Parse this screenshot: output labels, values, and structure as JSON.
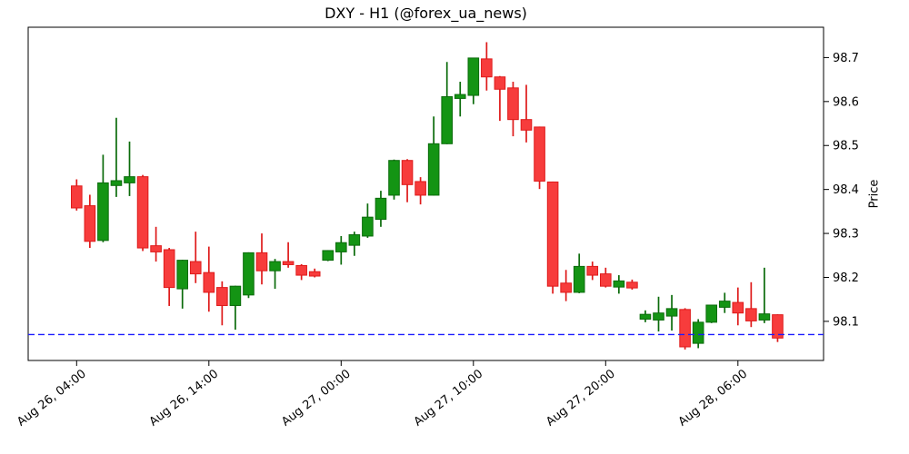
{
  "chart_data": {
    "type": "candlestick",
    "title": "DXY - H1 (@forex_ua_news)",
    "symbol": "DXY",
    "timeframe": "H1",
    "source_handle": "@forex_ua_news",
    "ylabel": "Price",
    "ylim": [
      98.011,
      98.769
    ],
    "y_ticks": [
      98.1,
      98.2,
      98.3,
      98.4,
      98.5,
      98.6,
      98.7
    ],
    "x_tick_indices": [
      0,
      10,
      20,
      30,
      40,
      50
    ],
    "x_tick_labels": [
      "Aug 26, 04:00",
      "Aug 26, 14:00",
      "Aug 27, 00:00",
      "Aug 27, 10:00",
      "Aug 27, 20:00",
      "Aug 28, 06:00"
    ],
    "grid": false,
    "legend": "none",
    "hline": {
      "value": 98.07,
      "color": "#1c1cff",
      "style": "dashed"
    },
    "up_color": "#149414",
    "up_edge_color": "#0b6b0b",
    "down_color": "#f73c3c",
    "down_edge_color": "#de1a1a",
    "candles": [
      {
        "t": "Aug 26, 04:00",
        "o": 98.408,
        "h": 98.423,
        "l": 98.352,
        "c": 98.358
      },
      {
        "t": "Aug 26, 05:00",
        "o": 98.363,
        "h": 98.388,
        "l": 98.267,
        "c": 98.282
      },
      {
        "t": "Aug 26, 06:00",
        "o": 98.284,
        "h": 98.479,
        "l": 98.28,
        "c": 98.415
      },
      {
        "t": "Aug 26, 07:00",
        "o": 98.409,
        "h": 98.563,
        "l": 98.383,
        "c": 98.42
      },
      {
        "t": "Aug 26, 08:00",
        "o": 98.415,
        "h": 98.509,
        "l": 98.385,
        "c": 98.429
      },
      {
        "t": "Aug 26, 09:00",
        "o": 98.429,
        "h": 98.433,
        "l": 98.26,
        "c": 98.267
      },
      {
        "t": "Aug 26, 10:00",
        "o": 98.272,
        "h": 98.315,
        "l": 98.236,
        "c": 98.258
      },
      {
        "t": "Aug 26, 11:00",
        "o": 98.263,
        "h": 98.267,
        "l": 98.135,
        "c": 98.177
      },
      {
        "t": "Aug 26, 12:00",
        "o": 98.174,
        "h": 98.24,
        "l": 98.129,
        "c": 98.239
      },
      {
        "t": "Aug 26, 13:00",
        "o": 98.236,
        "h": 98.304,
        "l": 98.187,
        "c": 98.208
      },
      {
        "t": "Aug 26, 14:00",
        "o": 98.211,
        "h": 98.27,
        "l": 98.122,
        "c": 98.166
      },
      {
        "t": "Aug 26, 15:00",
        "o": 98.177,
        "h": 98.191,
        "l": 98.091,
        "c": 98.136
      },
      {
        "t": "Aug 26, 16:00",
        "o": 98.136,
        "h": 98.181,
        "l": 98.081,
        "c": 98.18
      },
      {
        "t": "Aug 26, 17:00",
        "o": 98.16,
        "h": 98.257,
        "l": 98.153,
        "c": 98.256
      },
      {
        "t": "Aug 26, 18:00",
        "o": 98.256,
        "h": 98.3,
        "l": 98.184,
        "c": 98.215
      },
      {
        "t": "Aug 26, 19:00",
        "o": 98.215,
        "h": 98.242,
        "l": 98.174,
        "c": 98.236
      },
      {
        "t": "Aug 26, 20:00",
        "o": 98.236,
        "h": 98.28,
        "l": 98.222,
        "c": 98.229
      },
      {
        "t": "Aug 26, 21:00",
        "o": 98.227,
        "h": 98.23,
        "l": 98.194,
        "c": 98.205
      },
      {
        "t": "Aug 26, 22:00",
        "o": 98.213,
        "h": 98.22,
        "l": 98.2,
        "c": 98.203
      },
      {
        "t": "Aug 26, 23:00",
        "o": 98.239,
        "h": 98.262,
        "l": 98.237,
        "c": 98.261
      },
      {
        "t": "Aug 27, 00:00",
        "o": 98.258,
        "h": 98.294,
        "l": 98.229,
        "c": 98.279
      },
      {
        "t": "Aug 27, 01:00",
        "o": 98.273,
        "h": 98.304,
        "l": 98.249,
        "c": 98.297
      },
      {
        "t": "Aug 27, 02:00",
        "o": 98.294,
        "h": 98.368,
        "l": 98.29,
        "c": 98.337
      },
      {
        "t": "Aug 27, 03:00",
        "o": 98.332,
        "h": 98.397,
        "l": 98.315,
        "c": 98.38
      },
      {
        "t": "Aug 27, 04:00",
        "o": 98.387,
        "h": 98.468,
        "l": 98.377,
        "c": 98.466
      },
      {
        "t": "Aug 27, 05:00",
        "o": 98.466,
        "h": 98.469,
        "l": 98.371,
        "c": 98.411
      },
      {
        "t": "Aug 27, 06:00",
        "o": 98.418,
        "h": 98.428,
        "l": 98.366,
        "c": 98.387
      },
      {
        "t": "Aug 27, 07:00",
        "o": 98.387,
        "h": 98.566,
        "l": 98.386,
        "c": 98.504
      },
      {
        "t": "Aug 27, 08:00",
        "o": 98.504,
        "h": 98.69,
        "l": 98.503,
        "c": 98.611
      },
      {
        "t": "Aug 27, 09:00",
        "o": 98.607,
        "h": 98.645,
        "l": 98.566,
        "c": 98.616
      },
      {
        "t": "Aug 27, 10:00",
        "o": 98.614,
        "h": 98.699,
        "l": 98.594,
        "c": 98.699
      },
      {
        "t": "Aug 27, 11:00",
        "o": 98.697,
        "h": 98.735,
        "l": 98.625,
        "c": 98.656
      },
      {
        "t": "Aug 27, 12:00",
        "o": 98.656,
        "h": 98.658,
        "l": 98.556,
        "c": 98.628
      },
      {
        "t": "Aug 27, 13:00",
        "o": 98.631,
        "h": 98.645,
        "l": 98.521,
        "c": 98.559
      },
      {
        "t": "Aug 27, 14:00",
        "o": 98.559,
        "h": 98.638,
        "l": 98.507,
        "c": 98.535
      },
      {
        "t": "Aug 27, 15:00",
        "o": 98.542,
        "h": 98.543,
        "l": 98.401,
        "c": 98.419
      },
      {
        "t": "Aug 27, 16:00",
        "o": 98.417,
        "h": 98.418,
        "l": 98.163,
        "c": 98.18
      },
      {
        "t": "Aug 27, 17:00",
        "o": 98.187,
        "h": 98.217,
        "l": 98.146,
        "c": 98.166
      },
      {
        "t": "Aug 27, 18:00",
        "o": 98.166,
        "h": 98.254,
        "l": 98.164,
        "c": 98.225
      },
      {
        "t": "Aug 27, 19:00",
        "o": 98.225,
        "h": 98.236,
        "l": 98.194,
        "c": 98.205
      },
      {
        "t": "Aug 27, 20:00",
        "o": 98.208,
        "h": 98.222,
        "l": 98.177,
        "c": 98.18
      },
      {
        "t": "Aug 27, 21:00",
        "o": 98.178,
        "h": 98.205,
        "l": 98.163,
        "c": 98.192
      },
      {
        "t": "Aug 27, 22:00",
        "o": 98.189,
        "h": 98.195,
        "l": 98.172,
        "c": 98.176
      },
      {
        "t": "Aug 27, 23:00",
        "o": 98.105,
        "h": 98.125,
        "l": 98.098,
        "c": 98.116
      },
      {
        "t": "Aug 28, 00:00",
        "o": 98.103,
        "h": 98.156,
        "l": 98.077,
        "c": 98.119
      },
      {
        "t": "Aug 28, 01:00",
        "o": 98.112,
        "h": 98.16,
        "l": 98.079,
        "c": 98.129
      },
      {
        "t": "Aug 28, 02:00",
        "o": 98.127,
        "h": 98.13,
        "l": 98.036,
        "c": 98.042
      },
      {
        "t": "Aug 28, 03:00",
        "o": 98.05,
        "h": 98.105,
        "l": 98.039,
        "c": 98.098
      },
      {
        "t": "Aug 28, 04:00",
        "o": 98.098,
        "h": 98.138,
        "l": 98.096,
        "c": 98.137
      },
      {
        "t": "Aug 28, 05:00",
        "o": 98.132,
        "h": 98.165,
        "l": 98.119,
        "c": 98.146
      },
      {
        "t": "Aug 28, 06:00",
        "o": 98.143,
        "h": 98.177,
        "l": 98.091,
        "c": 98.119
      },
      {
        "t": "Aug 28, 07:00",
        "o": 98.129,
        "h": 98.189,
        "l": 98.087,
        "c": 98.101
      },
      {
        "t": "Aug 28, 08:00",
        "o": 98.103,
        "h": 98.222,
        "l": 98.096,
        "c": 98.117
      },
      {
        "t": "Aug 28, 09:00",
        "o": 98.115,
        "h": 98.116,
        "l": 98.053,
        "c": 98.062
      }
    ]
  }
}
